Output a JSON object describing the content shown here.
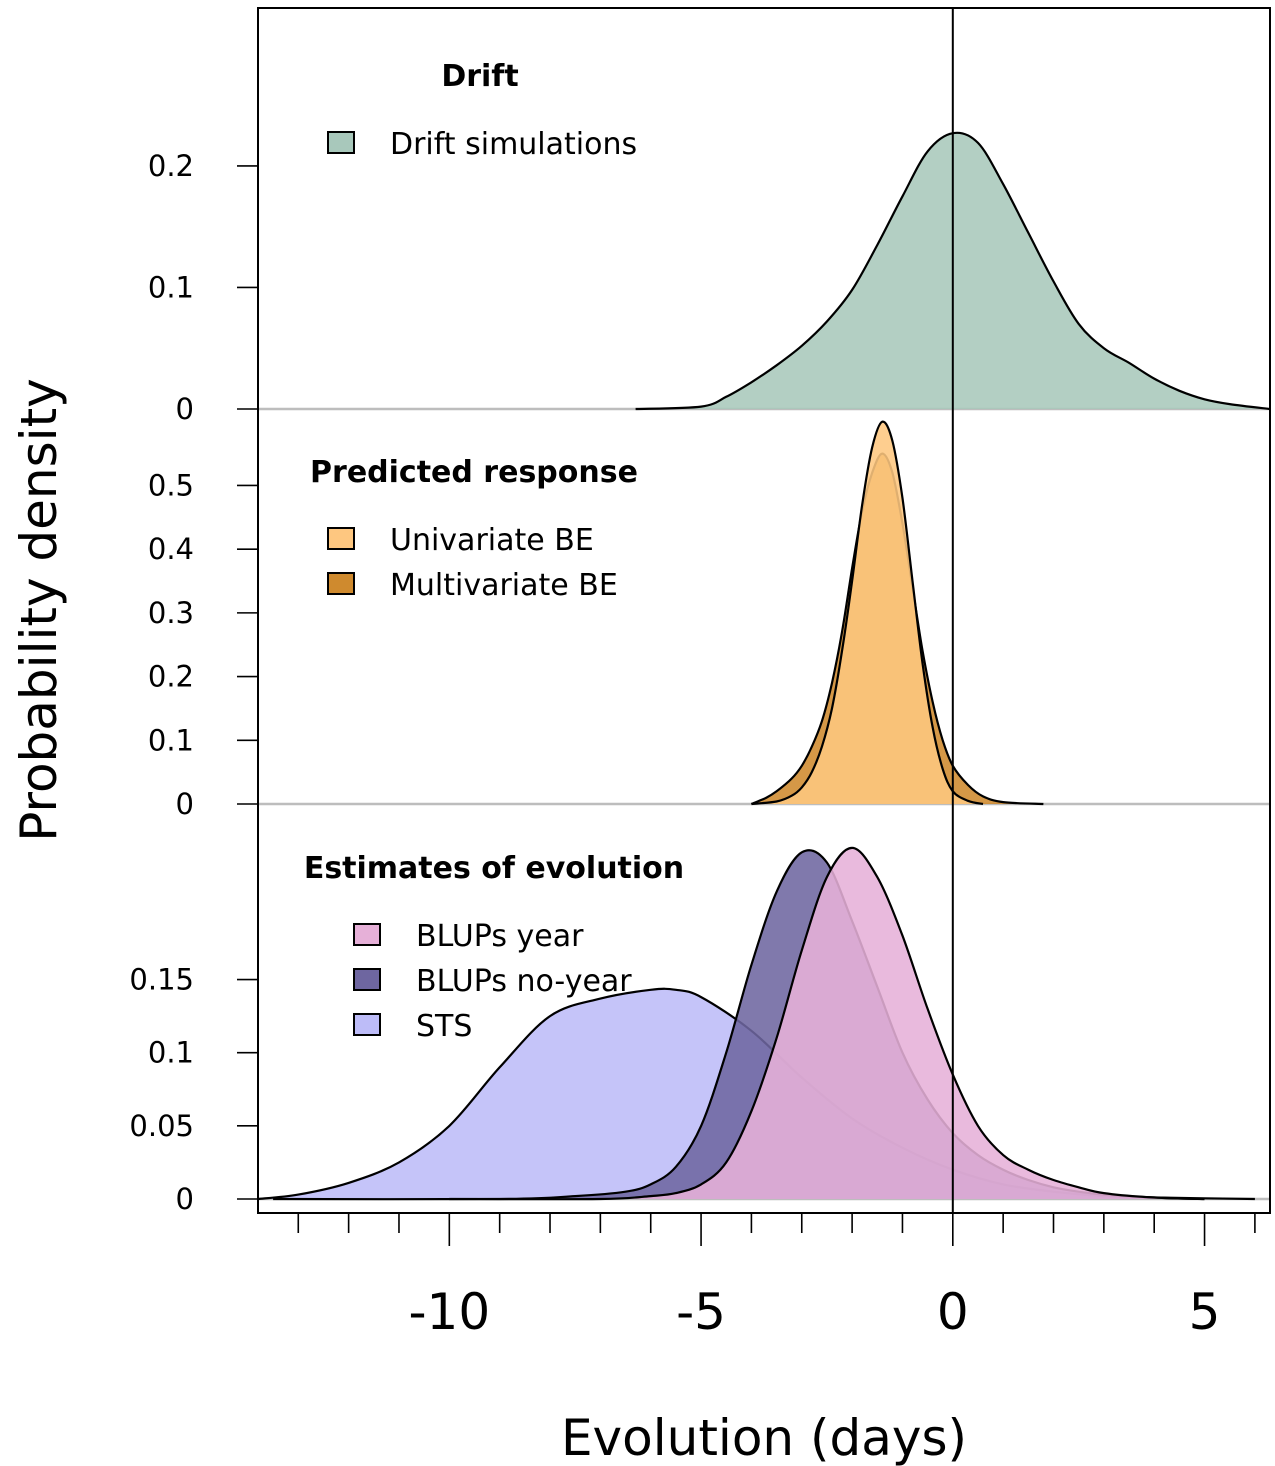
{
  "chart_data": {
    "type": "area",
    "xlabel": "Evolution (days)",
    "ylabel": "Probability density",
    "xlim": [
      -13.8,
      6.3
    ],
    "x_ticks": [
      -10,
      -5,
      0,
      5
    ],
    "x_tick_labels": [
      "-10",
      "-5",
      "0",
      "5"
    ],
    "x_minor_ticks": [
      -13,
      -12,
      -11,
      -9,
      -8,
      -7,
      -6,
      -4,
      -3,
      -2,
      -1,
      1,
      2,
      3,
      4,
      6
    ],
    "vline_x": 0,
    "panels": [
      {
        "legend_title": "Drift",
        "ylim": [
          0,
          0.33
        ],
        "y_ticks": [
          0,
          0.1,
          0.2
        ],
        "y_tick_labels": [
          "0",
          "0.1",
          "0.2"
        ],
        "series": [
          {
            "name": "Drift simulations",
            "color": "#a8c8bb",
            "x": [
              -6.3,
              -5.0,
              -4.5,
              -4.0,
              -3.5,
              -3.0,
              -2.5,
              -2.0,
              -1.5,
              -1.0,
              -0.5,
              0.0,
              0.5,
              1.0,
              1.5,
              2.0,
              2.5,
              3.0,
              3.5,
              4.0,
              4.5,
              5.0,
              5.5,
              6.3
            ],
            "y": [
              0.0,
              0.002,
              0.01,
              0.022,
              0.036,
              0.052,
              0.072,
              0.098,
              0.135,
              0.175,
              0.212,
              0.227,
              0.219,
              0.185,
              0.145,
              0.105,
              0.07,
              0.05,
              0.038,
              0.025,
              0.015,
              0.008,
              0.004,
              0.0
            ]
          }
        ]
      },
      {
        "legend_title": "Predicted response",
        "ylim": [
          0,
          0.62
        ],
        "y_ticks": [
          0,
          0.1,
          0.2,
          0.3,
          0.4,
          0.5
        ],
        "y_tick_labels": [
          "0",
          "0.1",
          "0.2",
          "0.3",
          "0.4",
          "0.5"
        ],
        "series": [
          {
            "name": "Univariate BE",
            "color": "#fec780",
            "x": [
              -4.0,
              -3.5,
              -3.2,
              -3.0,
              -2.8,
              -2.6,
              -2.4,
              -2.2,
              -2.0,
              -1.8,
              -1.6,
              -1.4,
              -1.2,
              -1.0,
              -0.8,
              -0.6,
              -0.4,
              -0.2,
              0.0,
              0.3,
              0.6
            ],
            "y": [
              0.0,
              0.004,
              0.013,
              0.026,
              0.05,
              0.09,
              0.15,
              0.24,
              0.35,
              0.47,
              0.56,
              0.6,
              0.57,
              0.48,
              0.35,
              0.22,
              0.12,
              0.055,
              0.02,
              0.005,
              0.0
            ]
          },
          {
            "name": "Multivariate BE",
            "color": "#cf8a2e",
            "x": [
              -4.0,
              -3.7,
              -3.5,
              -3.2,
              -3.0,
              -2.8,
              -2.6,
              -2.4,
              -2.2,
              -2.0,
              -1.8,
              -1.6,
              -1.4,
              -1.2,
              -1.0,
              -0.8,
              -0.6,
              -0.4,
              -0.2,
              0.0,
              0.3,
              0.6,
              1.0,
              1.8
            ],
            "y": [
              0.0,
              0.01,
              0.02,
              0.04,
              0.06,
              0.09,
              0.13,
              0.19,
              0.27,
              0.37,
              0.46,
              0.52,
              0.55,
              0.52,
              0.44,
              0.34,
              0.24,
              0.16,
              0.1,
              0.06,
              0.03,
              0.012,
              0.003,
              0.0
            ]
          }
        ]
      },
      {
        "legend_title": "Estimates of evolution",
        "ylim": [
          0,
          0.27
        ],
        "y_ticks": [
          0,
          0.05,
          0.1,
          0.15
        ],
        "y_tick_labels": [
          "0",
          "0.05",
          "0.1",
          "0.15"
        ],
        "series": [
          {
            "name": "BLUPs year",
            "color": "#e6b0d8",
            "x": [
              -10.0,
              -7.0,
              -6.0,
              -5.5,
              -5.0,
              -4.5,
              -4.0,
              -3.5,
              -3.0,
              -2.5,
              -2.0,
              -1.5,
              -1.0,
              -0.5,
              0.0,
              0.5,
              1.0,
              1.5,
              2.0,
              2.5,
              3.0,
              4.0,
              5.0
            ],
            "y": [
              0.0,
              0.0,
              0.002,
              0.004,
              0.01,
              0.025,
              0.06,
              0.11,
              0.17,
              0.22,
              0.24,
              0.22,
              0.18,
              0.13,
              0.085,
              0.05,
              0.03,
              0.02,
              0.013,
              0.008,
              0.004,
              0.001,
              0.0
            ]
          },
          {
            "name": "BLUPs no-year",
            "color": "#6e66a0",
            "x": [
              -13.5,
              -9.0,
              -7.5,
              -6.5,
              -6.0,
              -5.5,
              -5.0,
              -4.5,
              -4.0,
              -3.5,
              -3.0,
              -2.5,
              -2.0,
              -1.5,
              -1.0,
              -0.5,
              0.0,
              0.5,
              1.0,
              1.5,
              2.0,
              2.5,
              3.0,
              4.0,
              5.0
            ],
            "y": [
              0.0,
              0.0,
              0.002,
              0.005,
              0.01,
              0.022,
              0.05,
              0.1,
              0.16,
              0.21,
              0.237,
              0.23,
              0.19,
              0.145,
              0.1,
              0.068,
              0.045,
              0.03,
              0.02,
              0.013,
              0.008,
              0.005,
              0.003,
              0.001,
              0.0
            ]
          },
          {
            "name": "STS",
            "color": "#bdbcf8",
            "x": [
              -13.8,
              -13.0,
              -12.0,
              -11.0,
              -10.0,
              -9.0,
              -8.0,
              -7.0,
              -6.0,
              -5.5,
              -5.0,
              -4.0,
              -3.0,
              -2.0,
              -1.0,
              0.0,
              1.0,
              2.0,
              3.0,
              4.0,
              5.0,
              6.0
            ],
            "y": [
              0.0,
              0.003,
              0.011,
              0.025,
              0.05,
              0.09,
              0.125,
              0.137,
              0.143,
              0.143,
              0.138,
              0.115,
              0.083,
              0.055,
              0.035,
              0.02,
              0.01,
              0.005,
              0.002,
              0.001,
              0.0005,
              0.0
            ]
          }
        ]
      }
    ]
  }
}
